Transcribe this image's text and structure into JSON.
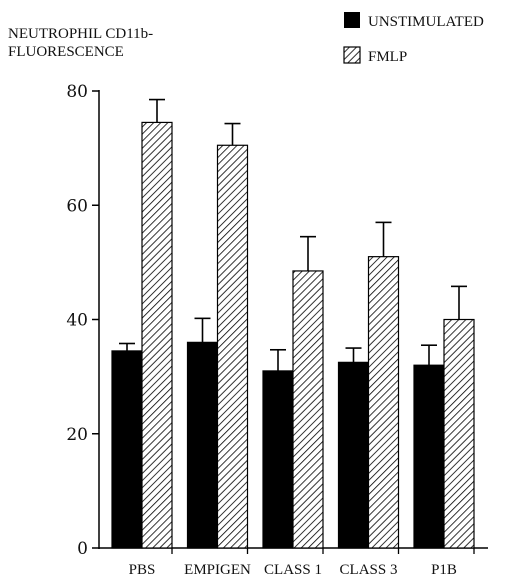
{
  "chart_data": {
    "type": "bar",
    "title": "NEUTROPHIL CD11b-",
    "subtitle": "FLUORESCENCE",
    "categories": [
      "PBS",
      "EMPIGEN",
      "CLASS 1",
      "CLASS 3",
      "P1B"
    ],
    "series": [
      {
        "name": "UNSTIMULATED",
        "values": [
          34.5,
          36,
          31,
          32.5,
          32
        ],
        "errors": [
          1.3,
          4.2,
          3.7,
          2.5,
          3.5
        ],
        "style": "solid"
      },
      {
        "name": "FMLP",
        "values": [
          74.5,
          70.5,
          48.5,
          51,
          40
        ],
        "errors": [
          4.0,
          3.8,
          6.0,
          6.0,
          5.8
        ],
        "style": "hatched"
      }
    ],
    "yticks": [
      0,
      20,
      40,
      60,
      80
    ],
    "ylim": [
      0,
      80
    ],
    "legend_position": "top-right",
    "grid": false,
    "colors": {
      "solid": "#000000",
      "hatch": "#000000",
      "background": "#ffffff"
    }
  }
}
